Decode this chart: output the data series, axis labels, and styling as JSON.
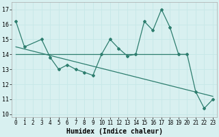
{
  "line1_x": [
    0,
    1,
    3,
    4,
    5,
    6,
    7,
    8,
    9,
    10,
    11,
    12,
    13,
    14,
    15,
    16,
    17,
    18,
    19,
    20,
    21,
    22,
    23
  ],
  "line1_y": [
    16.2,
    14.5,
    15.0,
    13.8,
    13.0,
    13.3,
    13.0,
    12.8,
    12.6,
    14.0,
    15.0,
    14.4,
    13.9,
    14.0,
    16.2,
    15.6,
    17.0,
    15.8,
    14.0,
    14.0,
    11.5,
    10.4,
    11.0
  ],
  "line2_x": [
    0,
    20
  ],
  "line2_y": [
    14.0,
    14.0
  ],
  "line3_x": [
    0,
    23
  ],
  "line3_y": [
    14.5,
    11.2
  ],
  "color": "#2d7d6e",
  "bg_color": "#d8f0f0",
  "grid_color": "#c8e8e8",
  "xlabel": "Humidex (Indice chaleur)",
  "xlim": [
    -0.5,
    23.5
  ],
  "ylim": [
    9.8,
    17.5
  ],
  "yticks": [
    10,
    11,
    12,
    13,
    14,
    15,
    16,
    17
  ],
  "xticks": [
    0,
    1,
    2,
    3,
    4,
    5,
    6,
    7,
    8,
    9,
    10,
    11,
    12,
    13,
    14,
    15,
    16,
    17,
    18,
    19,
    20,
    21,
    22,
    23
  ]
}
